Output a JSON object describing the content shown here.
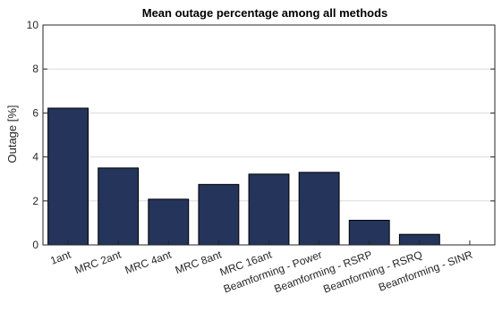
{
  "chart_data": {
    "type": "bar",
    "title": "Mean outage percentage among all methods",
    "xlabel": "",
    "ylabel": "Outage [%]",
    "ylim": [
      0,
      10
    ],
    "yticks": [
      "0",
      "2",
      "4",
      "6",
      "8",
      "10"
    ],
    "grid": true,
    "bar_color": "#24345a",
    "categories": [
      "1ant",
      "MRC 2ant",
      "MRC 4ant",
      "MRC 8ant",
      "MRC 16ant",
      "Beamforming - Power",
      "Beamforming - RSRP",
      "Beamforming - RSRQ",
      "Beamforming - SINR"
    ],
    "values": [
      6.22,
      3.5,
      2.08,
      2.75,
      3.22,
      3.3,
      1.12,
      0.48,
      0.0
    ]
  }
}
